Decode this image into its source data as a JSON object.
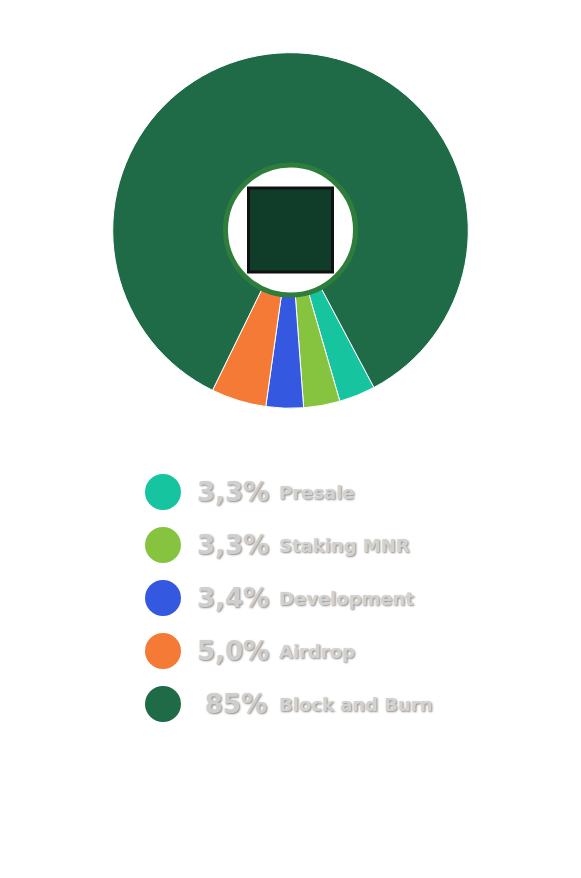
{
  "chart_data": {
    "type": "pie",
    "categories": [
      "Presale",
      "Staking MNR",
      "Development",
      "Airdrop",
      "Block and Burn"
    ],
    "values": [
      3.3,
      3.3,
      3.4,
      5.0,
      85
    ],
    "value_labels": [
      "3,3%",
      "3,3%",
      "3,4%",
      "5,0%",
      "85%"
    ],
    "colors": [
      "#17c4a0",
      "#86c440",
      "#3558e0",
      "#f47a36",
      "#1f6b47"
    ],
    "legend": "bottom"
  }
}
